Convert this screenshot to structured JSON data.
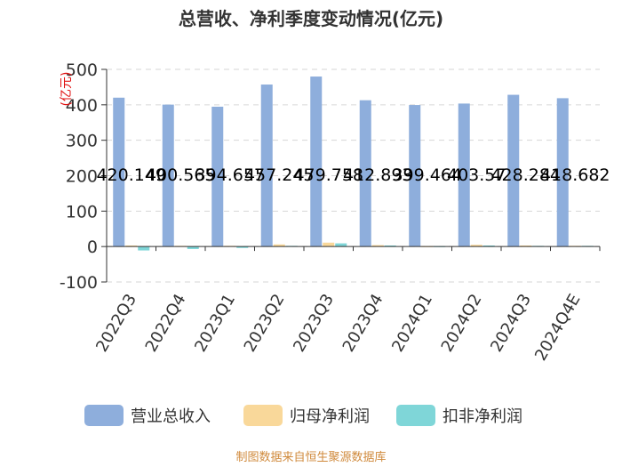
{
  "chart_data": {
    "type": "bar",
    "title": "总营收、净利季度变动情况(亿元)",
    "ylabel": "(亿元)",
    "ylim": [
      -100,
      500
    ],
    "yticks": [
      -100,
      0,
      100,
      200,
      300,
      400,
      500
    ],
    "grid": true,
    "legend_position": "bottom",
    "categories": [
      "2022Q3",
      "2022Q4",
      "2023Q1",
      "2023Q2",
      "2023Q3",
      "2023Q4",
      "2024Q1",
      "2024Q2",
      "2024Q3",
      "2024Q4E"
    ],
    "series": [
      {
        "name": "营业总收入",
        "color": "#8eaedc",
        "values": [
          420.149,
          400.565,
          394.657,
          457.245,
          479.758,
          412.893,
          399.464,
          403.57,
          428.284,
          418.682
        ],
        "labels": [
          "420.149",
          "400.565",
          "394.657",
          "457.245",
          "479.758",
          "412.893",
          "399.464",
          "403.57",
          "428.284",
          "418.682"
        ]
      },
      {
        "name": "归母净利润",
        "color": "#f9d89a",
        "values": [
          3,
          2,
          2,
          6,
          11,
          4,
          1,
          5,
          3,
          2
        ]
      },
      {
        "name": "扣非净利润",
        "color": "#7fd6d8",
        "values": [
          -11,
          -7,
          -4,
          2,
          9,
          3,
          1,
          3,
          2,
          2
        ]
      }
    ],
    "source": "制图数据来自恒生聚源数据库"
  }
}
